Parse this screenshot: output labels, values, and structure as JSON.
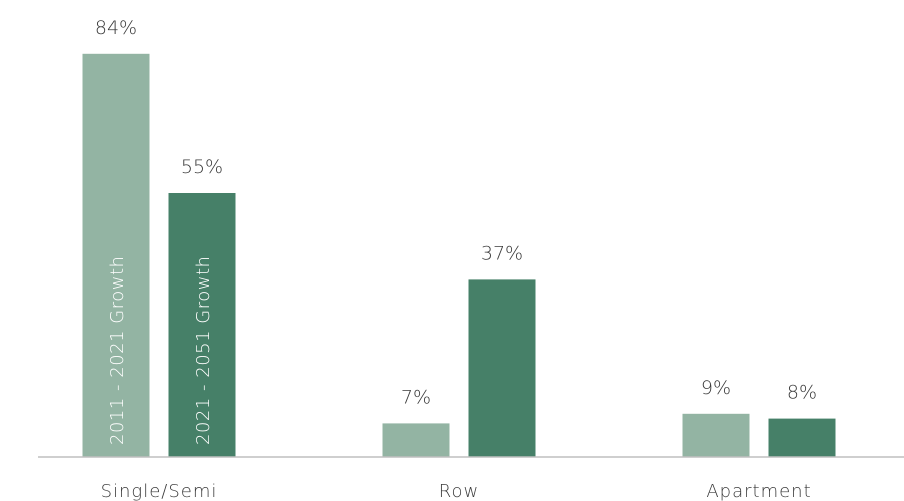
{
  "chart_data": {
    "type": "bar",
    "categories": [
      "Single/Semi",
      "Row",
      "Apartment"
    ],
    "series": [
      {
        "name": "2011 - 2021 Growth",
        "values": [
          84,
          7,
          9
        ],
        "color": "#93b4a3"
      },
      {
        "name": "2021 - 2051 Growth",
        "values": [
          55,
          37,
          8
        ],
        "color": "#468068"
      }
    ],
    "value_suffix": "%",
    "ylim": [
      0,
      100
    ],
    "axis_color": "#bfbfbf",
    "grid": false,
    "legend": "inside-bars"
  }
}
